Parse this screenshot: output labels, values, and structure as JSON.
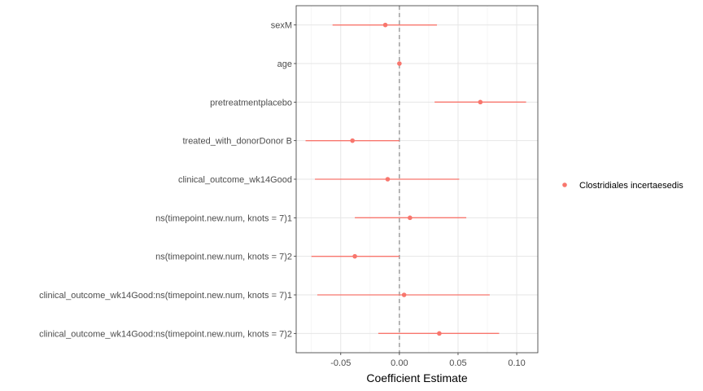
{
  "chart_data": {
    "type": "scatter",
    "subtype": "coefficient-forest-plot",
    "xlabel": "Coefficient Estimate",
    "ylabel": "",
    "xlim": [
      -0.088,
      0.118
    ],
    "x_ticks": [
      -0.05,
      0.0,
      0.05,
      0.1
    ],
    "x_tick_labels": [
      "-0.05",
      "0.00",
      "0.05",
      "0.10"
    ],
    "reference_line": 0,
    "grid": true,
    "legend_position": "right",
    "series": [
      {
        "name": "Clostridiales incertaesedis",
        "color": "#F8766D",
        "points": [
          {
            "term": "sexM",
            "estimate": -0.012,
            "low": -0.057,
            "high": 0.032
          },
          {
            "term": "age",
            "estimate": 0.0,
            "low": -0.0005,
            "high": 0.0005
          },
          {
            "term": "pretreatmentplacebo",
            "estimate": 0.069,
            "low": 0.03,
            "high": 0.108
          },
          {
            "term": "treated_with_donorDonor B",
            "estimate": -0.04,
            "low": -0.08,
            "high": 0.0
          },
          {
            "term": "clinical_outcome_wk14Good",
            "estimate": -0.01,
            "low": -0.072,
            "high": 0.051
          },
          {
            "term": "ns(timepoint.new.num, knots = 7)1",
            "estimate": 0.009,
            "low": -0.038,
            "high": 0.057
          },
          {
            "term": "ns(timepoint.new.num, knots = 7)2",
            "estimate": -0.038,
            "low": -0.075,
            "high": 0.0
          },
          {
            "term": "clinical_outcome_wk14Good:ns(timepoint.new.num, knots = 7)1",
            "estimate": 0.004,
            "low": -0.07,
            "high": 0.077
          },
          {
            "term": "clinical_outcome_wk14Good:ns(timepoint.new.num, knots = 7)2",
            "estimate": 0.034,
            "low": -0.018,
            "high": 0.085
          }
        ]
      }
    ]
  }
}
